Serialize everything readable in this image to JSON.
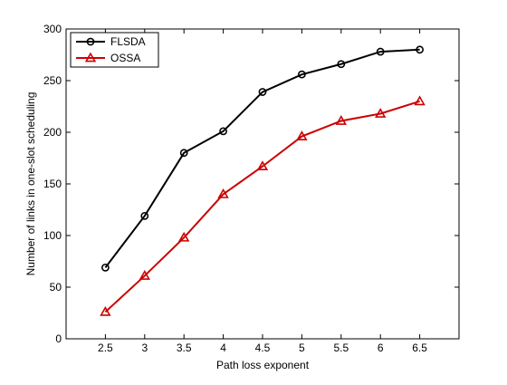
{
  "chart_data": {
    "type": "line",
    "title": "",
    "xlabel": "Path loss exponent",
    "ylabel": "Number of links in one-slot scheduling",
    "x": [
      2.5,
      3,
      3.5,
      4,
      4.5,
      5,
      5.5,
      6,
      6.5
    ],
    "x_ticks": [
      "2.5",
      "3",
      "3.5",
      "4",
      "4.5",
      "5",
      "5.5",
      "6",
      "6.5"
    ],
    "y_ticks": [
      "0",
      "50",
      "100",
      "150",
      "200",
      "250",
      "300"
    ],
    "xlim": [
      2,
      7
    ],
    "ylim": [
      0,
      300
    ],
    "grid": false,
    "legend_position": "top-left",
    "series": [
      {
        "name": "FLSDA",
        "color": "#000000",
        "marker": "circle",
        "values": [
          69,
          119,
          180,
          201,
          239,
          256,
          266,
          278,
          280
        ]
      },
      {
        "name": "OSSA",
        "color": "#cc0000",
        "marker": "triangle",
        "values": [
          26,
          61,
          98,
          140,
          167,
          196,
          211,
          218,
          230
        ]
      }
    ]
  }
}
